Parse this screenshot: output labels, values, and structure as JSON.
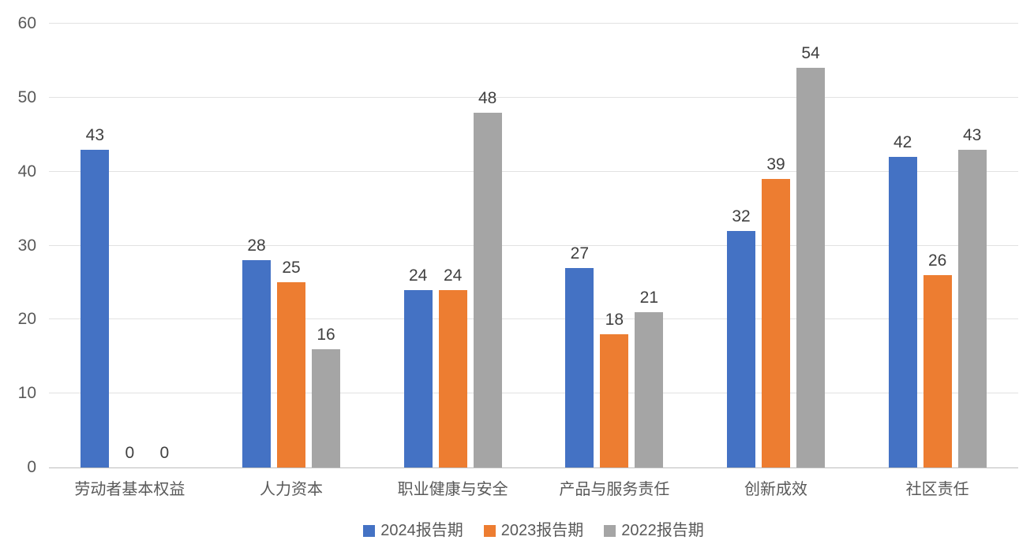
{
  "chart_data": {
    "type": "bar",
    "title": "",
    "categories": [
      "劳动者基本权益",
      "人力资本",
      "职业健康与安全",
      "产品与服务责任",
      "创新成效",
      "社区责任"
    ],
    "series": [
      {
        "name": "2024报告期",
        "color": "#4472C4",
        "values": [
          43,
          28,
          24,
          27,
          32,
          42
        ]
      },
      {
        "name": "2023报告期",
        "color": "#ED7D31",
        "values": [
          0,
          25,
          24,
          18,
          39,
          26
        ]
      },
      {
        "name": "2022报告期",
        "color": "#A5A5A5",
        "values": [
          0,
          16,
          48,
          21,
          54,
          43
        ]
      }
    ],
    "ylim": [
      0,
      60
    ],
    "yticks": [
      0,
      10,
      20,
      30,
      40,
      50,
      60
    ],
    "grid": true,
    "show_data_labels": true,
    "legend_position": "bottom"
  },
  "style": {
    "background": "#FFFFFF",
    "gridline_color": "#E2E2E2",
    "axis_line_color": "#BDBDBD",
    "data_label_color": "#404040",
    "axis_text_color": "#595959"
  }
}
